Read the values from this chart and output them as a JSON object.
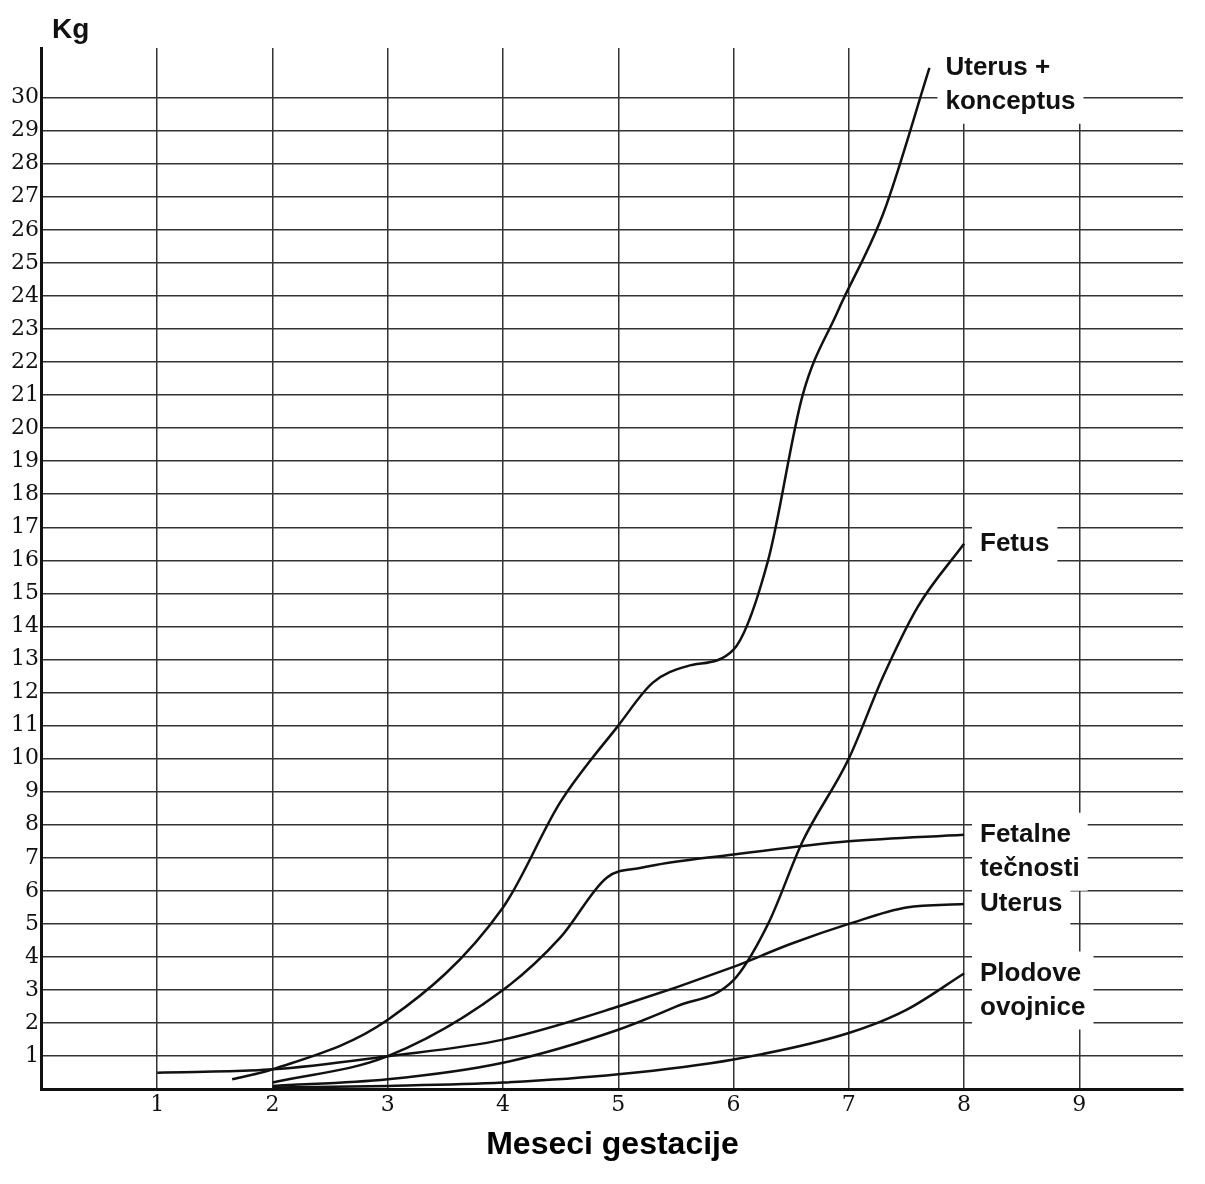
{
  "chart_data": {
    "type": "line",
    "xlabel": "Meseci gestacije",
    "ylabel": "Kg",
    "xlim": [
      0,
      9.9
    ],
    "ylim": [
      0,
      31.5
    ],
    "xticks": [
      1,
      2,
      3,
      4,
      5,
      6,
      7,
      8,
      9
    ],
    "yticks": [
      1,
      2,
      3,
      4,
      5,
      6,
      7,
      8,
      9,
      10,
      11,
      12,
      13,
      14,
      15,
      16,
      17,
      18,
      19,
      20,
      21,
      22,
      23,
      24,
      25,
      26,
      27,
      28,
      29,
      30
    ],
    "grid": true,
    "legend": false,
    "marker": "none",
    "line_style": "solid",
    "series": [
      {
        "name": "Uterus + konceptus",
        "color": "#111111",
        "x": [
          1.65,
          2,
          3,
          4,
          4.5,
          5,
          5.3,
          5.6,
          6,
          6.3,
          6.6,
          6.9,
          7.3,
          7.7
        ],
        "values": [
          0.3,
          0.6,
          2.1,
          5.5,
          8.7,
          11,
          12.3,
          12.8,
          13.3,
          16,
          21,
          23.5,
          26.5,
          30.9
        ]
      },
      {
        "name": "Fetus",
        "color": "#111111",
        "x": [
          2,
          3,
          4,
          5,
          5.5,
          6,
          6.3,
          6.6,
          7,
          7.3,
          7.6,
          8
        ],
        "values": [
          0.1,
          0.3,
          0.8,
          1.8,
          2.5,
          3.3,
          5,
          7.5,
          10,
          12.5,
          14.6,
          16.5
        ]
      },
      {
        "name": "Fetalne tečnosti",
        "color": "#111111",
        "x": [
          2,
          3,
          4,
          4.5,
          4.9,
          5.2,
          6,
          7,
          8
        ],
        "values": [
          0.2,
          1,
          3,
          4.6,
          6.4,
          6.7,
          7.1,
          7.5,
          7.7
        ]
      },
      {
        "name": "Uterus",
        "color": "#111111",
        "x": [
          1,
          2,
          3,
          4,
          5,
          6,
          6.5,
          7,
          7.5,
          8
        ],
        "values": [
          0.5,
          0.6,
          1,
          1.5,
          2.5,
          3.7,
          4.4,
          5,
          5.5,
          5.6
        ]
      },
      {
        "name": "Plodove ovojnice",
        "color": "#111111",
        "x": [
          2,
          3,
          4,
          5,
          6,
          7,
          7.5,
          8
        ],
        "values": [
          0.05,
          0.1,
          0.2,
          0.45,
          0.9,
          1.7,
          2.4,
          3.5
        ]
      }
    ]
  }
}
